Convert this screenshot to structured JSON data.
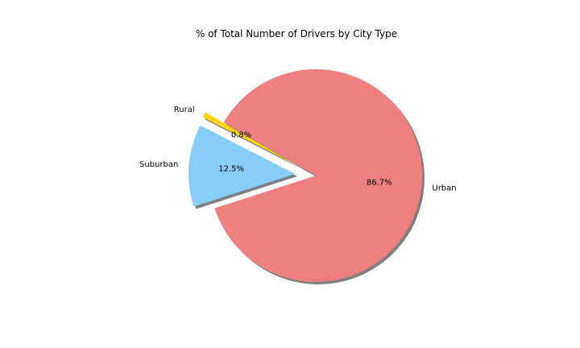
{
  "chart_data": {
    "type": "pie",
    "title": "% of Total Number of Drivers by City Type",
    "categories": [
      "Rural",
      "Suburban",
      "Urban"
    ],
    "values": [
      0.8,
      12.5,
      86.7
    ],
    "percent_labels": [
      "0.8%",
      "12.5%",
      "86.7%"
    ],
    "colors": [
      "#FFD700",
      "#87CEFA",
      "#F08080"
    ],
    "exploded": [
      true,
      true,
      false
    ],
    "shadow": true,
    "legend": "none"
  }
}
